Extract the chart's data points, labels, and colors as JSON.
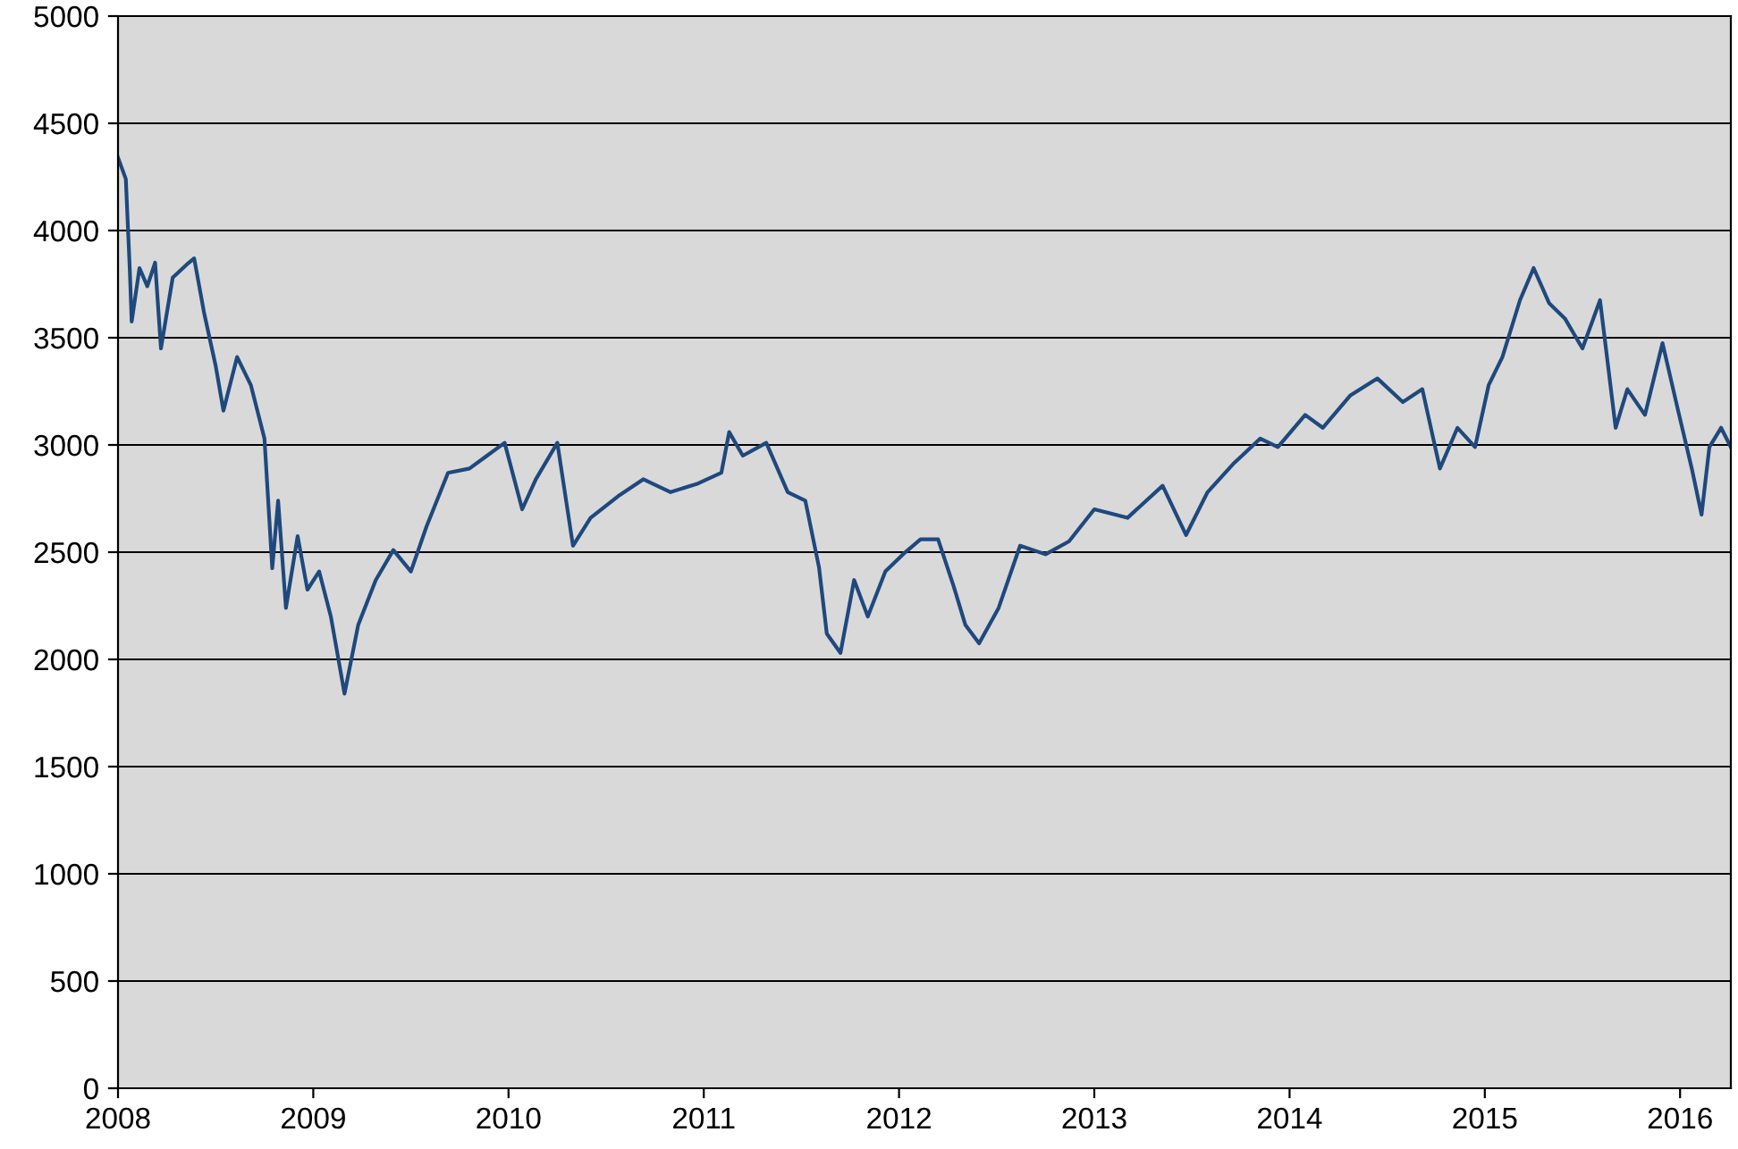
{
  "chart_data": {
    "type": "line",
    "xlim": [
      2008,
      2016.26
    ],
    "ylim": [
      0,
      5000
    ],
    "xticks": [
      2008,
      2009,
      2010,
      2011,
      2012,
      2013,
      2014,
      2015,
      2016
    ],
    "yticks": [
      0,
      500,
      1000,
      1500,
      2000,
      2500,
      3000,
      3500,
      4000,
      4500,
      5000
    ],
    "grid": "y",
    "legend": false,
    "marker": "none",
    "line_style": "solid",
    "series": [
      {
        "color": "#1f497d",
        "x": [
          2008,
          2008.04,
          2008.06,
          2008.07,
          2008.11,
          2008.15,
          2008.19,
          2008.22,
          2008.28,
          2008.35,
          2008.39,
          2008.44,
          2008.5,
          2008.54,
          2008.61,
          2008.68,
          2008.75,
          2008.79,
          2008.82,
          2008.86,
          2008.92,
          2008.97,
          2009.03,
          2009.09,
          2009.16,
          2009.23,
          2009.32,
          2009.41,
          2009.5,
          2009.58,
          2009.69,
          2009.8,
          2009.89,
          2009.98,
          2010.07,
          2010.14,
          2010.25,
          2010.33,
          2010.42,
          2010.56,
          2010.69,
          2010.83,
          2010.97,
          2011.09,
          2011.13,
          2011.2,
          2011.32,
          2011.43,
          2011.52,
          2011.59,
          2011.63,
          2011.7,
          2011.77,
          2011.84,
          2011.93,
          2012.02,
          2012.11,
          2012.2,
          2012.28,
          2012.34,
          2012.41,
          2012.51,
          2012.62,
          2012.75,
          2012.87,
          2013,
          2013.17,
          2013.35,
          2013.47,
          2013.58,
          2013.71,
          2013.85,
          2013.94,
          2014.08,
          2014.17,
          2014.31,
          2014.45,
          2014.58,
          2014.68,
          2014.77,
          2014.86,
          2014.95,
          2015.02,
          2015.09,
          2015.18,
          2015.25,
          2015.33,
          2015.41,
          2015.5,
          2015.59,
          2015.67,
          2015.73,
          2015.82,
          2015.91,
          2015.99,
          2016.06,
          2016.11,
          2016.15,
          2016.21,
          2016.26
        ],
        "values": [
          4340,
          4240,
          3825,
          3575,
          3825,
          3740,
          3850,
          3450,
          3780,
          3840,
          3870,
          3620,
          3370,
          3160,
          3410,
          3280,
          3030,
          2425,
          2740,
          2240,
          2575,
          2325,
          2410,
          2200,
          1840,
          2160,
          2370,
          2510,
          2410,
          2620,
          2870,
          2890,
          2950,
          3010,
          2700,
          2840,
          3010,
          2530,
          2660,
          2760,
          2840,
          2780,
          2820,
          2870,
          3060,
          2950,
          3010,
          2780,
          2740,
          2430,
          2120,
          2030,
          2370,
          2200,
          2410,
          2490,
          2560,
          2560,
          2340,
          2160,
          2075,
          2240,
          2530,
          2490,
          2550,
          2700,
          2660,
          2810,
          2580,
          2780,
          2910,
          3030,
          2990,
          3140,
          3080,
          3230,
          3310,
          3200,
          3260,
          2890,
          3080,
          2990,
          3280,
          3410,
          3675,
          3825,
          3660,
          3590,
          3450,
          3675,
          3080,
          3260,
          3140,
          3475,
          3160,
          2890,
          2675,
          2990,
          3080,
          2990
        ]
      }
    ]
  }
}
